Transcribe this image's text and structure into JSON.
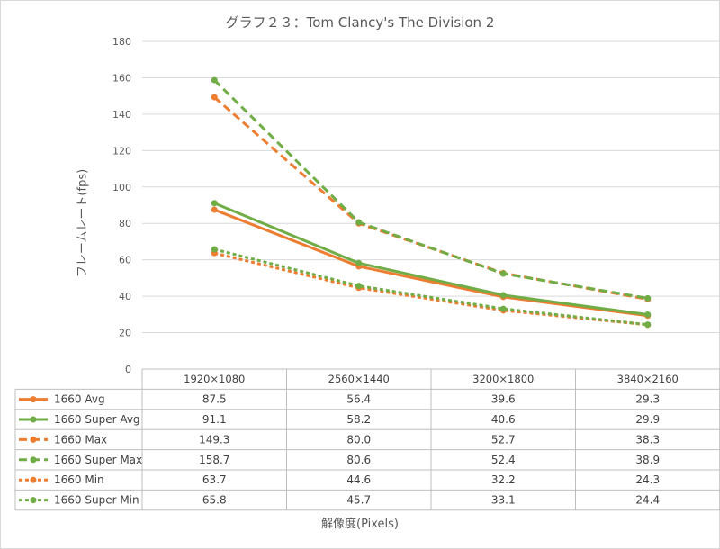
{
  "chart_data": {
    "type": "line",
    "title": "グラフ２３：Tom Clancy's The Division 2",
    "xlabel": "解像度(Pixels)",
    "ylabel": "フレームレート(fps)",
    "categories": [
      "1920×1080",
      "2560×1440",
      "3200×1800",
      "3840×2160"
    ],
    "ylim": [
      0,
      180
    ],
    "yticks": [
      0,
      20,
      40,
      60,
      80,
      100,
      120,
      140,
      160,
      180
    ],
    "grid": true,
    "legend_placement": "data-table-left",
    "series": [
      {
        "name": "1660 Avg",
        "values": [
          87.5,
          56.4,
          39.6,
          29.3
        ],
        "labels": [
          "87.5",
          "56.4",
          "39.6",
          "29.3"
        ],
        "color": "#ED7D31",
        "dash": "solid"
      },
      {
        "name": "1660 Super Avg",
        "values": [
          91.1,
          58.2,
          40.6,
          29.9
        ],
        "labels": [
          "91.1",
          "58.2",
          "40.6",
          "29.9"
        ],
        "color": "#70AD47",
        "dash": "solid"
      },
      {
        "name": "1660 Max",
        "values": [
          149.3,
          80.0,
          52.7,
          38.3
        ],
        "labels": [
          "149.3",
          "80.0",
          "52.7",
          "38.3"
        ],
        "color": "#ED7D31",
        "dash": "long-dash"
      },
      {
        "name": "1660 Super Max",
        "values": [
          158.7,
          80.6,
          52.4,
          38.9
        ],
        "labels": [
          "158.7",
          "80.6",
          "52.4",
          "38.9"
        ],
        "color": "#70AD47",
        "dash": "long-dash"
      },
      {
        "name": "1660 Min",
        "values": [
          63.7,
          44.6,
          32.2,
          24.3
        ],
        "labels": [
          "63.7",
          "44.6",
          "32.2",
          "24.3"
        ],
        "color": "#ED7D31",
        "dash": "short-dash"
      },
      {
        "name": "1660 Super Min",
        "values": [
          65.8,
          45.7,
          33.1,
          24.4
        ],
        "labels": [
          "65.8",
          "45.7",
          "33.1",
          "24.4"
        ],
        "color": "#70AD47",
        "dash": "short-dash"
      }
    ]
  }
}
